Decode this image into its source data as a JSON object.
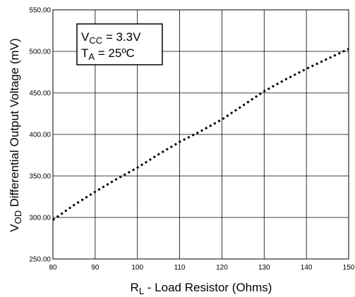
{
  "chart_data": {
    "type": "line",
    "xlabel": {
      "main": "R",
      "sub": "L",
      "rest": " - Load Resistor (Ohms)"
    },
    "ylabel": {
      "main": "V",
      "sub": "OD",
      "rest": " Differential Output Voltage (mV)"
    },
    "x_ticks": [
      "80",
      "90",
      "100",
      "110",
      "120",
      "130",
      "140",
      "150"
    ],
    "y_ticks": [
      "250.00",
      "300.00",
      "350.00",
      "400.00",
      "450.00",
      "500.00",
      "550.00"
    ],
    "xlim": [
      80,
      150
    ],
    "ylim": [
      250,
      550
    ],
    "grid": true,
    "line_style": "dotted",
    "line_color": "#000000",
    "legend_position": "top-left",
    "conditions": [
      {
        "main": "V",
        "sub": "CC",
        "rest": " = 3.3V"
      },
      {
        "main": "T",
        "sub": "A",
        "rest": " = 25ºC"
      }
    ],
    "series": [
      {
        "x": [
          80,
          85,
          90,
          95,
          100,
          105,
          110,
          115,
          120,
          125,
          130,
          135,
          140,
          145,
          150
        ],
        "values": [
          297,
          315,
          331,
          346,
          360,
          376,
          391,
          404,
          418,
          435,
          452,
          466,
          479,
          491,
          503
        ]
      }
    ]
  }
}
